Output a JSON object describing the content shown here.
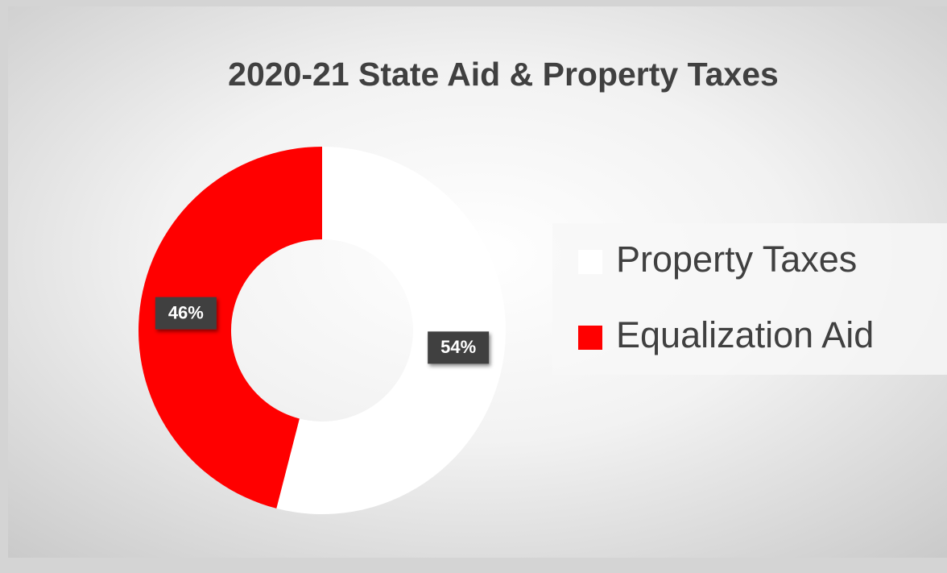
{
  "chart_data": {
    "type": "donut",
    "title": "2020-21 State Aid & Property Taxes",
    "categories": [
      "Property Taxes",
      "Equalization Aid"
    ],
    "values": [
      54,
      46
    ],
    "value_labels": [
      "54%",
      "46%"
    ],
    "colors": [
      "#ffffff",
      "#ff0000"
    ],
    "legend": "right"
  }
}
